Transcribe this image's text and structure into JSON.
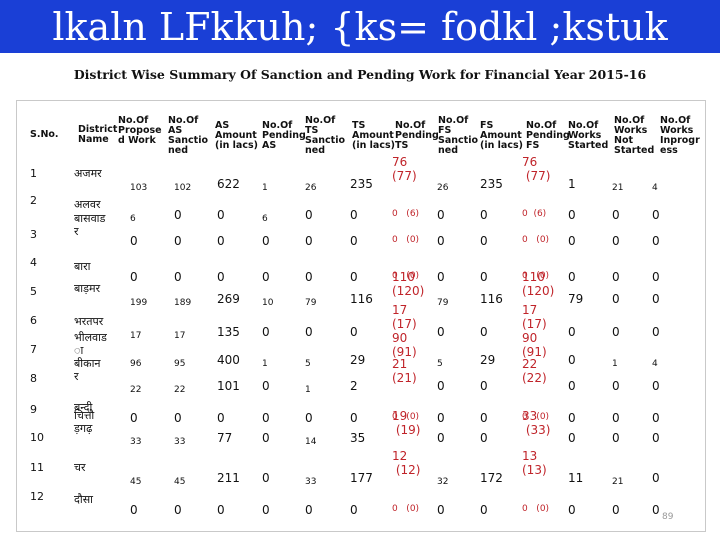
{
  "slide": {
    "title": "lkaln LFkkuh; {ks= fodkl ;kstuk",
    "subtitle": "District Wise Summary Of Sanction and Pending Work for Financial Year 2015-16",
    "page_number": "89"
  },
  "colors": {
    "banner": "#1a3fd6",
    "paren_values": "#c0242a"
  },
  "table": {
    "headers": [
      "S.No.",
      "District\nName",
      "No.Of\nPropose\nd Work",
      "No.Of\nAS\nSanctio\nned",
      "AS\nAmount\n(in lacs)",
      "No.Of\nPending\nAS",
      "No.Of\nTS\nSanctio\nned",
      "TS\nAmount\n(in lacs)",
      "No.Of\nPending\nTS",
      "No.Of\nFS\nSanctio\nned",
      "FS\nAmount\n(in lacs)",
      "No.Of\nPending\nFS",
      "No.Of\nWorks\nStarted",
      "No.Of\nWorks\nNot\nStarted",
      "No.Of\nWorks\nInprogr\ness"
    ],
    "rows": [
      {
        "sno": "1",
        "district": "अजमर",
        "proposed": "103",
        "as_sanc": "102",
        "as_amt": "622",
        "pend_as": "1",
        "ts_sanc": "26",
        "ts_amt": "235",
        "ts_amt_paren": "76\n(77)",
        "pend_ts": "26",
        "fs_sanc": "235",
        "fs_amt": "76\n (77)",
        "pend_fs": "1",
        "started": "21",
        "not_started": "4",
        "inprog": ""
      },
      {
        "sno": "2",
        "district": "अलवर",
        "proposed": "6",
        "as_sanc": "0",
        "as_amt": "0",
        "pend_as": "6",
        "ts_sanc": "0",
        "ts_amt": "0",
        "ts_amt_paren": "0   (6)",
        "pend_ts": "0",
        "fs_sanc": "0",
        "fs_amt": "0  (6)",
        "pend_fs": "0",
        "started": "0",
        "not_started": "0",
        "inprog": ""
      },
      {
        "sno": "3",
        "district": "बासवाड\nर",
        "proposed": "0",
        "as_sanc": "0",
        "as_amt": "0",
        "pend_as": "0",
        "ts_sanc": "0",
        "ts_amt": "0",
        "ts_amt_paren": "0   (0)",
        "pend_ts": "0",
        "fs_sanc": "0",
        "fs_amt": "0   (0)",
        "pend_fs": "0",
        "started": "0",
        "not_started": "0",
        "inprog": ""
      },
      {
        "sno": "4",
        "district": "बारा",
        "proposed": "0",
        "as_sanc": "0",
        "as_amt": "0",
        "pend_as": "0",
        "ts_sanc": "0",
        "ts_amt": "0",
        "ts_amt_paren": "0   (0)",
        "pend_ts": "0",
        "fs_sanc": "0",
        "fs_amt": "0   (0)",
        "pend_fs": "0",
        "started": "0",
        "not_started": "0",
        "inprog": ""
      },
      {
        "sno": "5",
        "district": "बाड़मर",
        "proposed": "199",
        "as_sanc": "189",
        "as_amt": "269",
        "pend_as": "10",
        "ts_sanc": "79",
        "ts_amt": "116",
        "ts_amt_paren": "110\n(120)",
        "pend_ts": "79",
        "fs_sanc": "116",
        "fs_amt": "110\n(120)",
        "pend_fs": "79",
        "started": "0",
        "not_started": "0",
        "inprog": ""
      },
      {
        "sno": "6",
        "district": "भरतपर",
        "proposed": "17",
        "as_sanc": "17",
        "as_amt": "135",
        "pend_as": "0",
        "ts_sanc": "0",
        "ts_amt": "0",
        "ts_amt_paren": "17\n(17)",
        "pend_ts": "0",
        "fs_sanc": "0",
        "fs_amt": "17\n(17)",
        "pend_fs": "0",
        "started": "0",
        "not_started": "0",
        "inprog": ""
      },
      {
        "sno": "7",
        "district": "भीलवाड\nा",
        "proposed": "96",
        "as_sanc": "95",
        "as_amt": "400",
        "pend_as": "1",
        "ts_sanc": "5",
        "ts_amt": "29",
        "ts_amt_paren": "90\n(91)",
        "pend_ts": "5",
        "fs_sanc": "29",
        "fs_amt": "90\n(91)",
        "pend_fs": "0",
        "started": "1",
        "not_started": "4",
        "inprog": ""
      },
      {
        "sno": "8",
        "district": "बीकान\nर",
        "proposed": "22",
        "as_sanc": "22",
        "as_amt": "101",
        "pend_as": "0",
        "ts_sanc": "1",
        "ts_amt": "2",
        "ts_amt_paren": "21\n(21)",
        "pend_ts": "0",
        "fs_sanc": "0",
        "fs_amt": "22\n(22)",
        "pend_fs": "0",
        "started": "0",
        "not_started": "0",
        "inprog": ""
      },
      {
        "sno": "9",
        "district": "बन्दी",
        "proposed": "0",
        "as_sanc": "0",
        "as_amt": "0",
        "pend_as": "0",
        "ts_sanc": "0",
        "ts_amt": "0",
        "ts_amt_paren": "0   (0)",
        "pend_ts": "0",
        "fs_sanc": "0",
        "fs_amt": "0   (0)",
        "pend_fs": "0",
        "started": "0",
        "not_started": "0",
        "inprog": ""
      },
      {
        "sno": "10",
        "district": "चित्तौ\nड़गढ़",
        "proposed": "33",
        "as_sanc": "33",
        "as_amt": "77",
        "pend_as": "0",
        "ts_sanc": "14",
        "ts_amt": "35",
        "ts_amt_paren": "19\n (19)",
        "pend_ts": "0",
        "fs_sanc": "0",
        "fs_amt": "33\n (33)",
        "pend_fs": "0",
        "started": "0",
        "not_started": "0",
        "inprog": ""
      },
      {
        "sno": "11",
        "district": "चर",
        "proposed": "45",
        "as_sanc": "45",
        "as_amt": "211",
        "pend_as": "0",
        "ts_sanc": "33",
        "ts_amt": "177",
        "ts_amt_paren": "12\n (12)",
        "pend_ts": "32",
        "fs_sanc": "172",
        "fs_amt": "13\n(13)",
        "pend_fs": "11",
        "started": "21",
        "not_started": "0",
        "inprog": ""
      },
      {
        "sno": "12",
        "district": "दौसा",
        "proposed": "0",
        "as_sanc": "0",
        "as_amt": "0",
        "pend_as": "0",
        "ts_sanc": "0",
        "ts_amt": "0",
        "ts_amt_paren": "0   (0)",
        "pend_ts": "0",
        "fs_sanc": "0",
        "fs_amt": "0   (0)",
        "pend_fs": "0",
        "started": "0",
        "not_started": "0",
        "inprog": ""
      }
    ]
  }
}
